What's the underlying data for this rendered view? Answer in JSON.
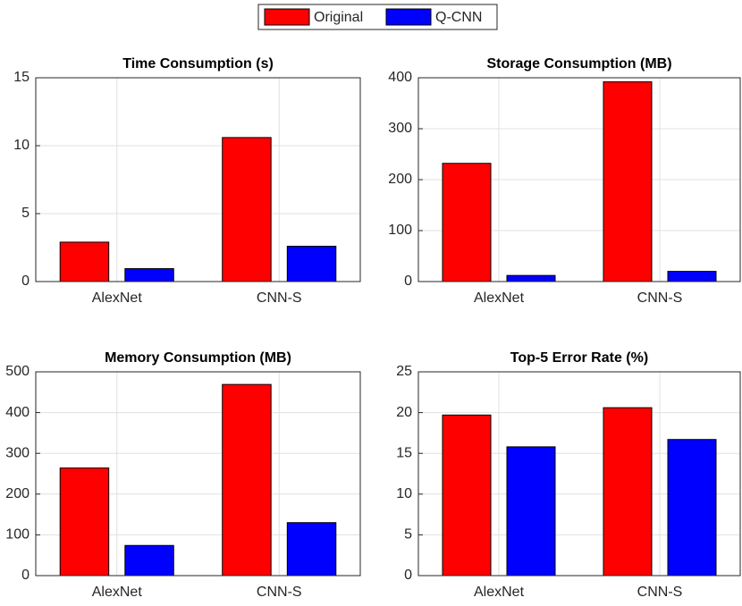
{
  "chart_data": [
    {
      "type": "bar",
      "title": "Time Consumption (s)",
      "categories": [
        "AlexNet",
        "CNN-S"
      ],
      "series": [
        {
          "name": "Original",
          "color": "#ff0000",
          "values": [
            2.9,
            10.6
          ]
        },
        {
          "name": "Q-CNN",
          "color": "#0000ff",
          "values": [
            0.95,
            2.6
          ]
        }
      ],
      "ylim": [
        0,
        15
      ],
      "yticks": [
        0,
        5,
        10,
        15
      ],
      "grid": true
    },
    {
      "type": "bar",
      "title": "Storage Consumption (MB)",
      "categories": [
        "AlexNet",
        "CNN-S"
      ],
      "series": [
        {
          "name": "Original",
          "color": "#ff0000",
          "values": [
            232,
            392
          ]
        },
        {
          "name": "Q-CNN",
          "color": "#0000ff",
          "values": [
            12,
            20
          ]
        }
      ],
      "ylim": [
        0,
        400
      ],
      "yticks": [
        0,
        100,
        200,
        300,
        400
      ],
      "grid": true
    },
    {
      "type": "bar",
      "title": "Memory Consumption (MB)",
      "categories": [
        "AlexNet",
        "CNN-S"
      ],
      "series": [
        {
          "name": "Original",
          "color": "#ff0000",
          "values": [
            264,
            469
          ]
        },
        {
          "name": "Q-CNN",
          "color": "#0000ff",
          "values": [
            74,
            130
          ]
        }
      ],
      "ylim": [
        0,
        500
      ],
      "yticks": [
        0,
        100,
        200,
        300,
        400,
        500
      ],
      "grid": true
    },
    {
      "type": "bar",
      "title": "Top-5 Error Rate (%)",
      "categories": [
        "AlexNet",
        "CNN-S"
      ],
      "series": [
        {
          "name": "Original",
          "color": "#ff0000",
          "values": [
            19.7,
            20.6
          ]
        },
        {
          "name": "Q-CNN",
          "color": "#0000ff",
          "values": [
            15.8,
            16.7
          ]
        }
      ],
      "ylim": [
        0,
        25
      ],
      "yticks": [
        0,
        5,
        10,
        15,
        20,
        25
      ],
      "grid": true
    }
  ]
}
